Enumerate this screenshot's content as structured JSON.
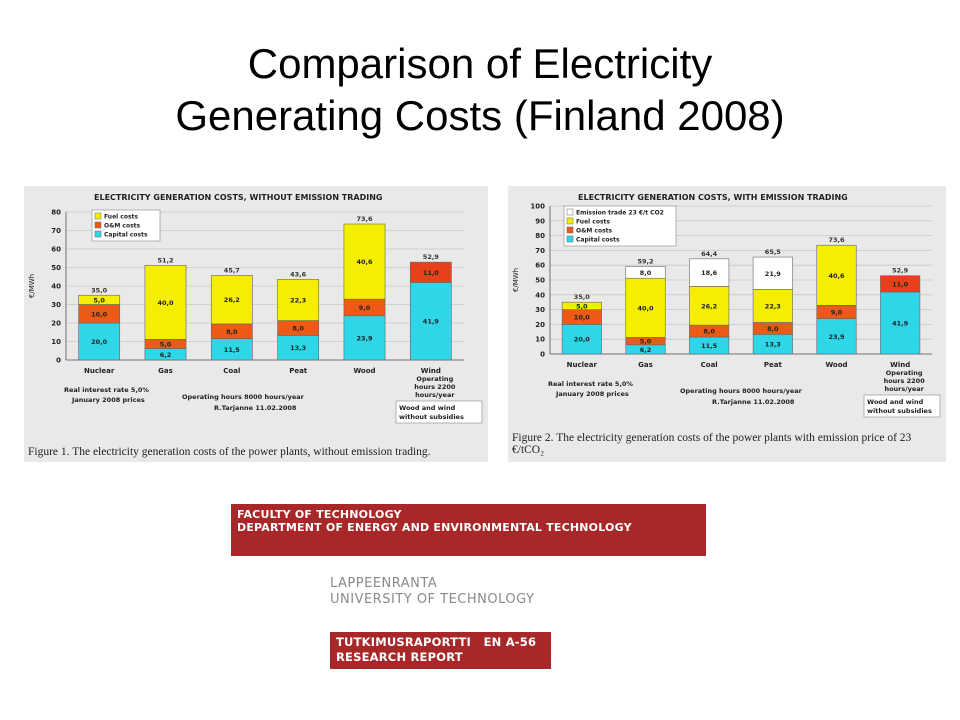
{
  "slide": {
    "title_line1": "Comparison of Electricity",
    "title_line2": "Generating Costs (Finland 2008)"
  },
  "colors": {
    "capital": "#2fd6e8",
    "om": "#ec5a16",
    "fuel": "#f5ee00",
    "emission": "#ffffff",
    "wind_om": "#e8401a"
  },
  "chart_data": [
    {
      "type": "bar",
      "stacked": true,
      "title": "ELECTRICITY GENERATION COSTS, WITHOUT EMISSION TRADING",
      "ylabel": "€/MWh",
      "ylim": [
        0,
        80
      ],
      "yticks": [
        "0",
        "10",
        "20",
        "30",
        "40",
        "50",
        "60",
        "70",
        "80"
      ],
      "categories": [
        "Nuclear",
        "Gas",
        "Coal",
        "Peat",
        "Wood",
        "Wind"
      ],
      "legend": [
        "Fuel costs",
        "O&M costs",
        "Capital costs"
      ],
      "series": [
        {
          "name": "Capital costs",
          "key": "capital",
          "values": [
            20.0,
            6.2,
            11.5,
            13.3,
            23.9,
            41.9
          ],
          "labels": [
            "20,0",
            "6,2",
            "11,5",
            "13,3",
            "23,9",
            "41,9"
          ]
        },
        {
          "name": "O&M costs",
          "key": "om",
          "values": [
            10.0,
            5.0,
            8.0,
            8.0,
            9.0,
            11.0
          ],
          "labels": [
            "10,0",
            "5,0",
            "8,0",
            "8,0",
            "9,0",
            "11,0"
          ]
        },
        {
          "name": "Fuel costs",
          "key": "fuel",
          "values": [
            5.0,
            40.0,
            26.2,
            22.3,
            40.6,
            0
          ],
          "labels": [
            "5,0",
            "40,0",
            "26,2",
            "22,3",
            "40,6",
            ""
          ]
        }
      ],
      "totals": [
        "35,0",
        "51,2",
        "45,7",
        "43,6",
        "73,6",
        "52,9"
      ],
      "notes": {
        "wind_hours": [
          "Operating",
          "hours 2200",
          "hours/year"
        ],
        "interest": "Real interest rate 5,0%",
        "prices": "January 2008 prices",
        "hours": "Operating hours 8000 hours/year",
        "author": "R.Tarjanne 11.02.2008",
        "subsidy": [
          "Wood and wind",
          "without subsidies"
        ]
      },
      "caption": "Figure 1. The electricity generation costs of the power plants, without emission trading."
    },
    {
      "type": "bar",
      "stacked": true,
      "title": "ELECTRICITY GENERATION COSTS, WITH EMISSION TRADING",
      "ylabel": "€/MWh",
      "ylim": [
        0,
        100
      ],
      "yticks": [
        "0",
        "10",
        "20",
        "30",
        "40",
        "50",
        "60",
        "70",
        "80",
        "90",
        "100"
      ],
      "categories": [
        "Nuclear",
        "Gas",
        "Coal",
        "Peat",
        "Wood",
        "Wind"
      ],
      "legend": [
        "Emission trade 23 €/t CO2",
        "Fuel costs",
        "O&M costs",
        "Capital costs"
      ],
      "series": [
        {
          "name": "Capital costs",
          "key": "capital",
          "values": [
            20.0,
            6.2,
            11.5,
            13.3,
            23.9,
            41.9
          ],
          "labels": [
            "20,0",
            "6,2",
            "11,5",
            "13,3",
            "23,9",
            "41,9"
          ]
        },
        {
          "name": "O&M costs",
          "key": "om",
          "values": [
            10.0,
            5.0,
            8.0,
            8.0,
            9.0,
            11.0
          ],
          "labels": [
            "10,0",
            "5,0",
            "8,0",
            "8,0",
            "9,0",
            "11,0"
          ]
        },
        {
          "name": "Fuel costs",
          "key": "fuel",
          "values": [
            5.0,
            40.0,
            26.2,
            22.3,
            40.6,
            0
          ],
          "labels": [
            "5,0",
            "40,0",
            "26,2",
            "22,3",
            "40,6",
            ""
          ]
        },
        {
          "name": "Emission trade 23 €/t CO2",
          "key": "emission",
          "values": [
            0,
            8.0,
            18.6,
            21.9,
            0,
            0
          ],
          "labels": [
            "",
            "8,0",
            "18,6",
            "21,9",
            "",
            ""
          ]
        }
      ],
      "totals": [
        "35,0",
        "59,2",
        "64,4",
        "65,5",
        "73,6",
        "52,9"
      ],
      "notes": {
        "wind_hours": [
          "Operating",
          "hours 2200",
          "hours/year"
        ],
        "interest": "Real interest rate 5,0%",
        "prices": "January 2008 prices",
        "hours": "Operating hours 8000 hours/year",
        "author": "R.Tarjanne 11.02.2008",
        "subsidy": [
          "Wood and wind",
          "without subsidies"
        ]
      },
      "caption_line1": "Figure 2. The electricity generation costs of the power plants with emission price of 23",
      "caption_line2": "€/tCO₂"
    }
  ],
  "report": {
    "faculty": "FACULTY OF TECHNOLOGY",
    "department": "DEPARTMENT OF ENERGY AND ENVIRONMENTAL TECHNOLOGY",
    "university_line1": "LAPPEENRANTA",
    "university_line2": "UNIVERSITY OF TECHNOLOGY",
    "series_line1": "TUTKIMUSRAPORTTI   EN A-56",
    "series_line2": "RESEARCH REPORT"
  }
}
